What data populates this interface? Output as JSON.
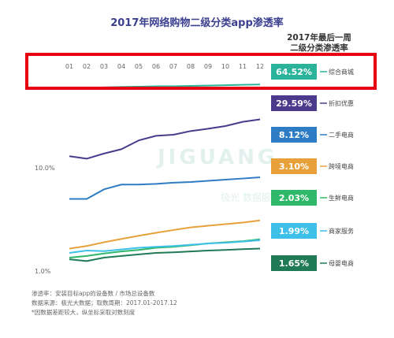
{
  "header": {
    "title": "2017年网络购物二级分类app渗透率",
    "subhead_line1": "2017年最后一周",
    "subhead_line2": "二级分类渗透率"
  },
  "watermark": {
    "brand": "JIGUANG",
    "sub": "极光 数据服务"
  },
  "footnotes": {
    "line1": "渗透率：安装目标app的设备数 / 市场总设备数",
    "line2": "数据来源：极光大数据；取数周期：2017.01-2017.12",
    "line3": "*因数据差距较大，纵坐标采取对数刻度"
  },
  "colors": {
    "title": "#3a3f8f",
    "highlight_box": "#e60012"
  },
  "chart_data": {
    "type": "line",
    "x": [
      "01",
      "02",
      "03",
      "04",
      "05",
      "06",
      "07",
      "08",
      "09",
      "10",
      "11",
      "12"
    ],
    "yscale": "log",
    "ytick_labels": [
      "10.0%",
      "1.0%"
    ],
    "ytick_values": [
      10.0,
      1.0
    ],
    "ylim": [
      0.9,
      80
    ],
    "grid": false,
    "legend_position": "right",
    "series": [
      {
        "name": "综合商城",
        "color": "#2bb39b",
        "last_value": "64.52%",
        "values": [
          59.0,
          59.5,
          60.5,
          61.0,
          61.5,
          62.0,
          62.0,
          62.5,
          63.0,
          63.5,
          64.0,
          64.52
        ]
      },
      {
        "name": "折扣优惠",
        "color": "#4b3a8c",
        "last_value": "29.59%",
        "values": [
          13.0,
          12.3,
          13.8,
          15.2,
          18.5,
          20.5,
          21.0,
          22.8,
          24.0,
          25.5,
          28.0,
          29.59
        ]
      },
      {
        "name": "二手电商",
        "color": "#2e7cc4",
        "last_value": "8.12%",
        "values": [
          5.0,
          5.0,
          6.2,
          6.9,
          6.9,
          7.0,
          7.2,
          7.3,
          7.5,
          7.7,
          7.9,
          8.12
        ]
      },
      {
        "name": "跨境电商",
        "color": "#e8a13a",
        "last_value": "3.10%",
        "values": [
          1.65,
          1.75,
          1.9,
          2.05,
          2.2,
          2.35,
          2.5,
          2.65,
          2.75,
          2.85,
          2.95,
          3.1
        ]
      },
      {
        "name": "生鲜电商",
        "color": "#2fb86a",
        "last_value": "2.03%",
        "values": [
          1.35,
          1.4,
          1.48,
          1.55,
          1.6,
          1.68,
          1.72,
          1.78,
          1.85,
          1.9,
          1.95,
          2.03
        ]
      },
      {
        "name": "商家服务",
        "color": "#3fc0e8",
        "last_value": "1.99%",
        "values": [
          1.5,
          1.58,
          1.56,
          1.62,
          1.68,
          1.72,
          1.75,
          1.8,
          1.85,
          1.88,
          1.93,
          1.99
        ]
      },
      {
        "name": "母婴电商",
        "color": "#1f7a55",
        "last_value": "1.65%",
        "values": [
          1.3,
          1.25,
          1.35,
          1.4,
          1.45,
          1.5,
          1.52,
          1.55,
          1.58,
          1.6,
          1.63,
          1.65
        ]
      }
    ]
  }
}
